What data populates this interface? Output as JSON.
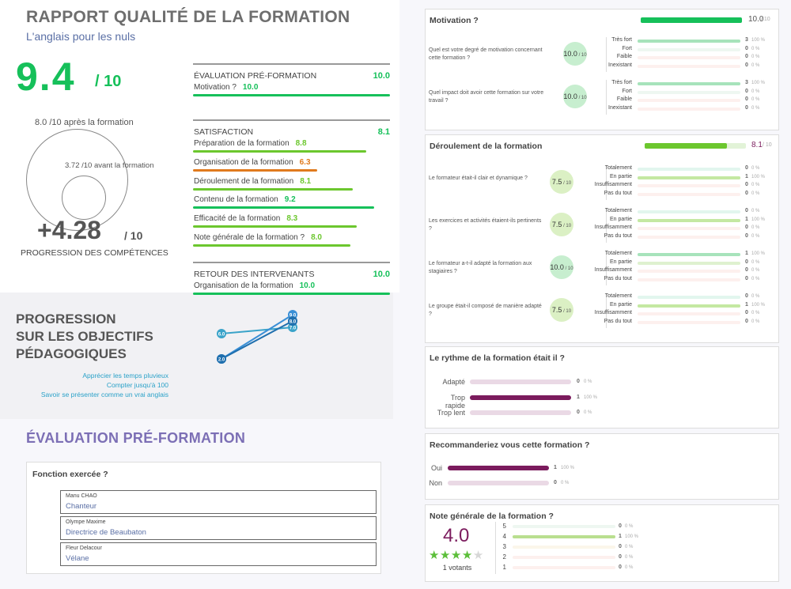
{
  "header": {
    "title": "RAPPORT QUALITÉ DE LA FORMATION",
    "subtitle": "L'anglais pour les nuls",
    "score": "9.4",
    "score_den": "/ 10"
  },
  "progression": {
    "after_label": "8.0 /10 après la formation",
    "before_label": "3.72 /10 avant la formation",
    "value": "+4.28",
    "den": "/ 10",
    "label": "PROGRESSION DES COMPÉTENCES"
  },
  "summary": {
    "sections": [
      {
        "title": "ÉVALUATION PRÉ-FORMATION",
        "score": "10.0",
        "rows": [
          {
            "label": "Motivation ?",
            "score": "10.0",
            "color": "#16c05a",
            "value": 10.0
          }
        ]
      },
      {
        "title": "SATISFACTION",
        "score": "8.1",
        "rows": [
          {
            "label": "Préparation de la formation",
            "score": "8.8",
            "color": "#6cc72e",
            "value": 8.8
          },
          {
            "label": "Organisation de la formation",
            "score": "6.3",
            "color": "#e07a1e",
            "value": 6.3
          },
          {
            "label": "Déroulement de la formation",
            "score": "8.1",
            "color": "#6cc72e",
            "value": 8.1
          },
          {
            "label": "Contenu de la formation",
            "score": "9.2",
            "color": "#16c05a",
            "value": 9.2
          },
          {
            "label": "Efficacité de la formation",
            "score": "8.3",
            "color": "#6cc72e",
            "value": 8.3
          },
          {
            "label": "Note générale de la formation ?",
            "score": "8.0",
            "color": "#6cc72e",
            "value": 8.0
          }
        ]
      },
      {
        "title": "RETOUR DES INTERVENANTS",
        "score": "10.0",
        "rows": [
          {
            "label": "Organisation de la formation",
            "score": "10.0",
            "color": "#16c05a",
            "value": 10.0
          }
        ]
      }
    ]
  },
  "objectives": {
    "title_l1": "PROGRESSION",
    "title_l2": "SUR LES OBJECTIFS",
    "title_l3": "PÉDAGOGIQUES",
    "items": [
      "Apprécier les temps pluvieux",
      "Compter jusqu'à 100",
      "Savoir se présenter comme un vrai anglais"
    ],
    "chart_data": {
      "type": "line",
      "series": [
        {
          "values": [
            6.0,
            7.0
          ],
          "color": "#3aa3c9"
        },
        {
          "values": [
            2.0,
            9.0
          ],
          "color": "#3a8fd6"
        },
        {
          "values": [
            2.0,
            8.0
          ],
          "color": "#1f6fae"
        }
      ],
      "point_labels": [
        "6.0",
        "7.0",
        "2.0",
        "9.0",
        "2.0",
        "8.0"
      ]
    }
  },
  "pre_section": {
    "title": "ÉVALUATION PRÉ-FORMATION",
    "card_title": "Fonction exercée ?",
    "entries": [
      {
        "name": "Manu CHAO",
        "value": "Chanteur"
      },
      {
        "name": "Olympe Maxime",
        "value": "Directrice de Beaubaton"
      },
      {
        "name": "Fleur Delacour",
        "value": "Vélane"
      }
    ]
  },
  "motivation": {
    "title": "Motivation ?",
    "score": "10.0",
    "den": "/ 10",
    "fill": 1.0,
    "questions": [
      {
        "text": "Quel est votre degré de motivation concernant cette formation ?",
        "score": "10.0",
        "den": "/ 10",
        "options": [
          [
            "Très fort",
            "3",
            "100 %",
            1
          ],
          [
            "Fort",
            "0",
            "0 %",
            0
          ],
          [
            "Faible",
            "0",
            "0 %",
            0
          ],
          [
            "Inexistant",
            "0",
            "0 %",
            0
          ]
        ]
      },
      {
        "text": "Quel impact doit avoir cette formation sur votre travail ?",
        "score": "10.0",
        "den": "/ 10",
        "options": [
          [
            "Très fort",
            "3",
            "100 %",
            1
          ],
          [
            "Fort",
            "0",
            "0 %",
            0
          ],
          [
            "Faible",
            "0",
            "0 %",
            0
          ],
          [
            "Inexistant",
            "0",
            "0 %",
            0
          ]
        ]
      }
    ]
  },
  "deroulement": {
    "title": "Déroulement de la formation",
    "score": "8.1",
    "den": "/ 10",
    "fill": 0.81,
    "questions": [
      {
        "text": "Le formateur était-il clair et dynamique ?",
        "score": "7.5",
        "den": "/ 10",
        "options": [
          [
            "Totalement",
            "0",
            "0 %",
            0
          ],
          [
            "En partie",
            "1",
            "100 %",
            1
          ],
          [
            "Insuffisamment",
            "0",
            "0 %",
            0
          ],
          [
            "Pas du tout",
            "0",
            "0 %",
            0
          ]
        ]
      },
      {
        "text": "Les exercices et activités étaient-ils pertinents ?",
        "score": "7.5",
        "den": "/ 10",
        "options": [
          [
            "Totalement",
            "0",
            "0 %",
            0
          ],
          [
            "En partie",
            "1",
            "100 %",
            1
          ],
          [
            "Insuffisamment",
            "0",
            "0 %",
            0
          ],
          [
            "Pas du tout",
            "0",
            "0 %",
            0
          ]
        ]
      },
      {
        "text": "Le formateur a-t-il adapté la formation aux stagiaires ?",
        "score": "10.0",
        "den": "/ 10",
        "options": [
          [
            "Totalement",
            "1",
            "100 %",
            1
          ],
          [
            "En partie",
            "0",
            "0 %",
            0
          ],
          [
            "Insuffisamment",
            "0",
            "0 %",
            0
          ],
          [
            "Pas du tout",
            "0",
            "0 %",
            0
          ]
        ]
      },
      {
        "text": "Le groupe était-il composé de manière adapté ?",
        "score": "7.5",
        "den": "/ 10",
        "options": [
          [
            "Totalement",
            "0",
            "0 %",
            0
          ],
          [
            "En partie",
            "1",
            "100 %",
            1
          ],
          [
            "Insuffisamment",
            "0",
            "0 %",
            0
          ],
          [
            "Pas du tout",
            "0",
            "0 %",
            0
          ]
        ]
      }
    ]
  },
  "rythme": {
    "title": "Le rythme de la formation était il ?",
    "options": [
      [
        "Adapté",
        "0",
        "0 %",
        0
      ],
      [
        "Trop rapide",
        "1",
        "100 %",
        1
      ],
      [
        "Trop lent",
        "0",
        "0 %",
        0
      ]
    ]
  },
  "recommend": {
    "title": "Recommanderiez vous cette formation ?",
    "options": [
      [
        "Oui",
        "1",
        "100 %",
        1
      ],
      [
        "Non",
        "0",
        "0 %",
        0
      ]
    ]
  },
  "note": {
    "title": "Note générale de la formation ?",
    "score": "4.0",
    "stars": "★★★★★",
    "stars_filled": 4,
    "voters": "1 votants",
    "options": [
      [
        "5",
        "0",
        "0 %",
        0
      ],
      [
        "4",
        "1",
        "100 %",
        1
      ],
      [
        "3",
        "0",
        "0 %",
        0
      ],
      [
        "2",
        "0",
        "0 %",
        0
      ],
      [
        "1",
        "0",
        "0 %",
        0
      ]
    ]
  }
}
